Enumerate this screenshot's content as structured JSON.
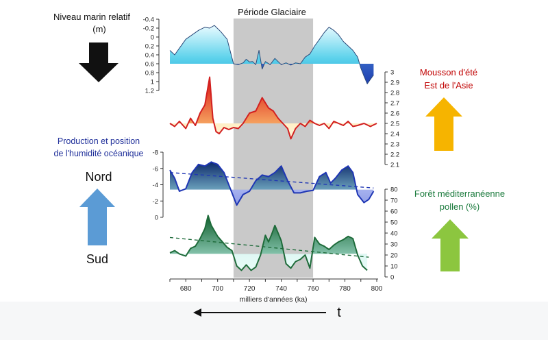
{
  "labels": {
    "sea_level_title": "Niveau marin relatif",
    "sea_level_unit": "(m)",
    "monsoon_line1": "Mousson d'été",
    "monsoon_line2": "Est de l'Asie",
    "humidity_line1": "Production et position",
    "humidity_line2": "de l'humidité océanique",
    "north": "Nord",
    "south": "Sud",
    "forest_line1": "Forêt méditerranéenne",
    "forest_line2": "pollen (%)",
    "glacial_period": "Période Glaciaire",
    "time_symbol": "t"
  },
  "colors": {
    "black_arrow": "#111111",
    "yellow_arrow": "#f6b400",
    "blue_arrow": "#5b9bd5",
    "green_arrow": "#8cc63f",
    "sea_level_fill": "#45c9e6",
    "monsoon_line": "#d21f1f",
    "humidity_line": "#1f36b4",
    "forest_line": "#1e6b3a",
    "monsoon_text": "#c00000",
    "humidity_text": "#1f2f9a",
    "forest_text": "#1a7a3c",
    "glacial_band": "#c9c9c9"
  },
  "chart_data": [
    {
      "type": "area",
      "name": "sea-level",
      "ylabel": "Niveau marin relatif (m)",
      "y_inverted": true,
      "yticks": [
        "-0.4",
        "-0.2",
        "0",
        "0.2",
        "0.4",
        "0.6",
        "0.8",
        "1",
        "1.2"
      ],
      "ylim": [
        -0.4,
        1.2
      ],
      "baseline": 0.6,
      "x": [
        670,
        673,
        676,
        680,
        684,
        688,
        692,
        695,
        698,
        702,
        706,
        710,
        713,
        716,
        718,
        720,
        722,
        724,
        726,
        728,
        730,
        733,
        736,
        740,
        743,
        746,
        749,
        752,
        755,
        758,
        761,
        764,
        767,
        770,
        773,
        776,
        779,
        782,
        785,
        788,
        790,
        792,
        794,
        796,
        798
      ],
      "y": [
        0.3,
        0.4,
        0.25,
        0.05,
        -0.05,
        -0.15,
        -0.22,
        -0.2,
        -0.26,
        -0.12,
        0.05,
        0.6,
        0.62,
        0.58,
        0.5,
        0.56,
        0.55,
        0.62,
        0.3,
        0.72,
        0.55,
        0.62,
        0.48,
        0.62,
        0.58,
        0.63,
        0.58,
        0.6,
        0.45,
        0.38,
        0.2,
        0.05,
        -0.1,
        -0.22,
        -0.15,
        -0.05,
        0.1,
        0.2,
        0.3,
        0.45,
        0.7,
        0.88,
        1.05,
        0.95,
        0.85
      ]
    },
    {
      "type": "line",
      "name": "monsoon",
      "ylabel": "Mousson d'été Est de l'Asie",
      "yticks": [
        "2.1",
        "2.2",
        "2.3",
        "2.4",
        "2.5",
        "2.6",
        "2.7",
        "2.8",
        "2.9",
        "3"
      ],
      "ylim": [
        2.1,
        3.0
      ],
      "baseline": 2.5,
      "x": [
        670,
        673,
        676,
        680,
        683,
        686,
        689,
        692,
        695,
        697,
        699,
        701,
        704,
        707,
        710,
        713,
        716,
        720,
        724,
        728,
        732,
        735,
        738,
        741,
        744,
        746,
        749,
        752,
        755,
        758,
        761,
        764,
        767,
        770,
        773,
        776,
        779,
        782,
        785,
        788,
        792,
        796,
        800
      ],
      "y": [
        2.5,
        2.47,
        2.52,
        2.45,
        2.55,
        2.48,
        2.6,
        2.68,
        2.95,
        2.55,
        2.42,
        2.4,
        2.46,
        2.44,
        2.46,
        2.45,
        2.5,
        2.6,
        2.62,
        2.75,
        2.65,
        2.62,
        2.55,
        2.5,
        2.45,
        2.35,
        2.45,
        2.5,
        2.47,
        2.53,
        2.5,
        2.48,
        2.5,
        2.45,
        2.52,
        2.5,
        2.48,
        2.52,
        2.47,
        2.48,
        2.5,
        2.47,
        2.5
      ]
    },
    {
      "type": "area",
      "name": "humidity",
      "ylabel": "Production et position de l'humidité océanique",
      "y_inverted": true,
      "yticks": [
        "-8",
        "-6",
        "-4",
        "-2",
        "0"
      ],
      "ylim": [
        -8,
        0
      ],
      "baseline": -3.4,
      "x": [
        670,
        673,
        676,
        680,
        684,
        688,
        692,
        696,
        700,
        704,
        708,
        712,
        716,
        720,
        724,
        728,
        732,
        736,
        740,
        744,
        748,
        752,
        756,
        760,
        764,
        768,
        771,
        774,
        778,
        782,
        785,
        788,
        792,
        795,
        798
      ],
      "y": [
        -5.8,
        -4.8,
        -3.2,
        -3.5,
        -5.5,
        -6.5,
        -6.3,
        -6.8,
        -6.5,
        -5.5,
        -3.5,
        -1.5,
        -2.8,
        -3.2,
        -4.5,
        -5.2,
        -5.0,
        -5.5,
        -6.3,
        -4.5,
        -3.0,
        -3.0,
        -3.2,
        -3.3,
        -5.0,
        -5.5,
        -4.2,
        -4.8,
        -5.8,
        -6.3,
        -5.5,
        -2.8,
        -1.8,
        -2.2,
        -3.2
      ],
      "trend": {
        "x": [
          670,
          798
        ],
        "y": [
          -5.5,
          -3.6
        ]
      }
    },
    {
      "type": "area",
      "name": "mediterranean-forest",
      "ylabel": "Forêt méditerranéenne pollen (%)",
      "yticks": [
        "0",
        "10",
        "20",
        "30",
        "40",
        "50",
        "60",
        "70",
        "80"
      ],
      "ylim": [
        0,
        80
      ],
      "baseline": 21,
      "x": [
        670,
        673,
        676,
        680,
        683,
        686,
        689,
        692,
        694,
        696,
        698,
        700,
        703,
        706,
        709,
        712,
        715,
        718,
        721,
        724,
        727,
        730,
        732,
        734,
        736,
        738,
        740,
        743,
        746,
        749,
        752,
        755,
        758,
        761,
        764,
        767,
        770,
        773,
        776,
        779,
        782,
        785,
        788,
        791,
        794
      ],
      "y": [
        22,
        24,
        21,
        19,
        26,
        28,
        35,
        44,
        56,
        47,
        42,
        37,
        32,
        27,
        24,
        10,
        6,
        11,
        6,
        9,
        20,
        38,
        32,
        39,
        47,
        40,
        33,
        12,
        8,
        14,
        16,
        20,
        8,
        36,
        30,
        28,
        25,
        29,
        32,
        34,
        37,
        35,
        20,
        10,
        6
      ],
      "trend": {
        "x": [
          670,
          795
        ],
        "y": [
          36,
          18
        ]
      }
    }
  ],
  "x_axis": {
    "title": "milliers d'années (ka)",
    "range": [
      670,
      800
    ],
    "ticks": [
      "680",
      "700",
      "720",
      "740",
      "760",
      "780",
      "800"
    ]
  },
  "glacial_period_range": [
    710,
    760
  ]
}
